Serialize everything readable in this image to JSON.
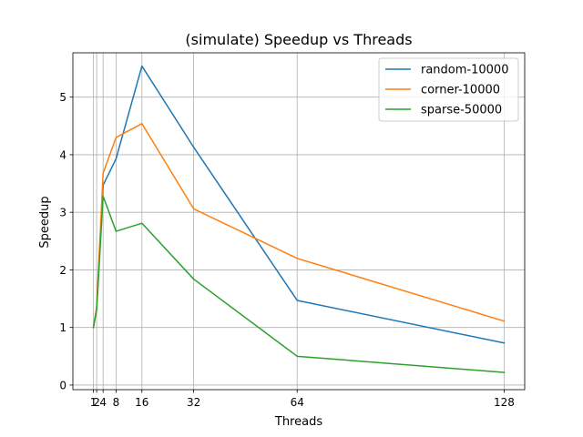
{
  "chart_data": {
    "type": "line",
    "title": "(simulate) Speedup vs Threads",
    "xlabel": "Threads",
    "ylabel": "Speedup",
    "x": [
      1,
      2,
      4,
      8,
      16,
      32,
      64,
      128
    ],
    "x_ticks": [
      1,
      2,
      4,
      8,
      16,
      32,
      64,
      128
    ],
    "y_ticks": [
      0,
      1,
      2,
      3,
      4,
      5
    ],
    "xlim": [
      -5.35,
      134.35
    ],
    "ylim": [
      -0.08,
      5.77
    ],
    "grid": true,
    "legend_position": "upper-right",
    "series": [
      {
        "name": "random-10000",
        "color": "#1f77b4",
        "values": [
          1.0,
          1.35,
          3.47,
          3.93,
          5.54,
          4.13,
          1.47,
          0.73
        ]
      },
      {
        "name": "corner-10000",
        "color": "#ff7f0e",
        "values": [
          1.0,
          1.35,
          3.68,
          4.3,
          4.54,
          3.06,
          2.2,
          1.11
        ]
      },
      {
        "name": "sparse-50000",
        "color": "#2ca02c",
        "values": [
          1.0,
          1.3,
          3.28,
          2.67,
          2.81,
          1.84,
          0.5,
          0.22
        ]
      }
    ]
  }
}
